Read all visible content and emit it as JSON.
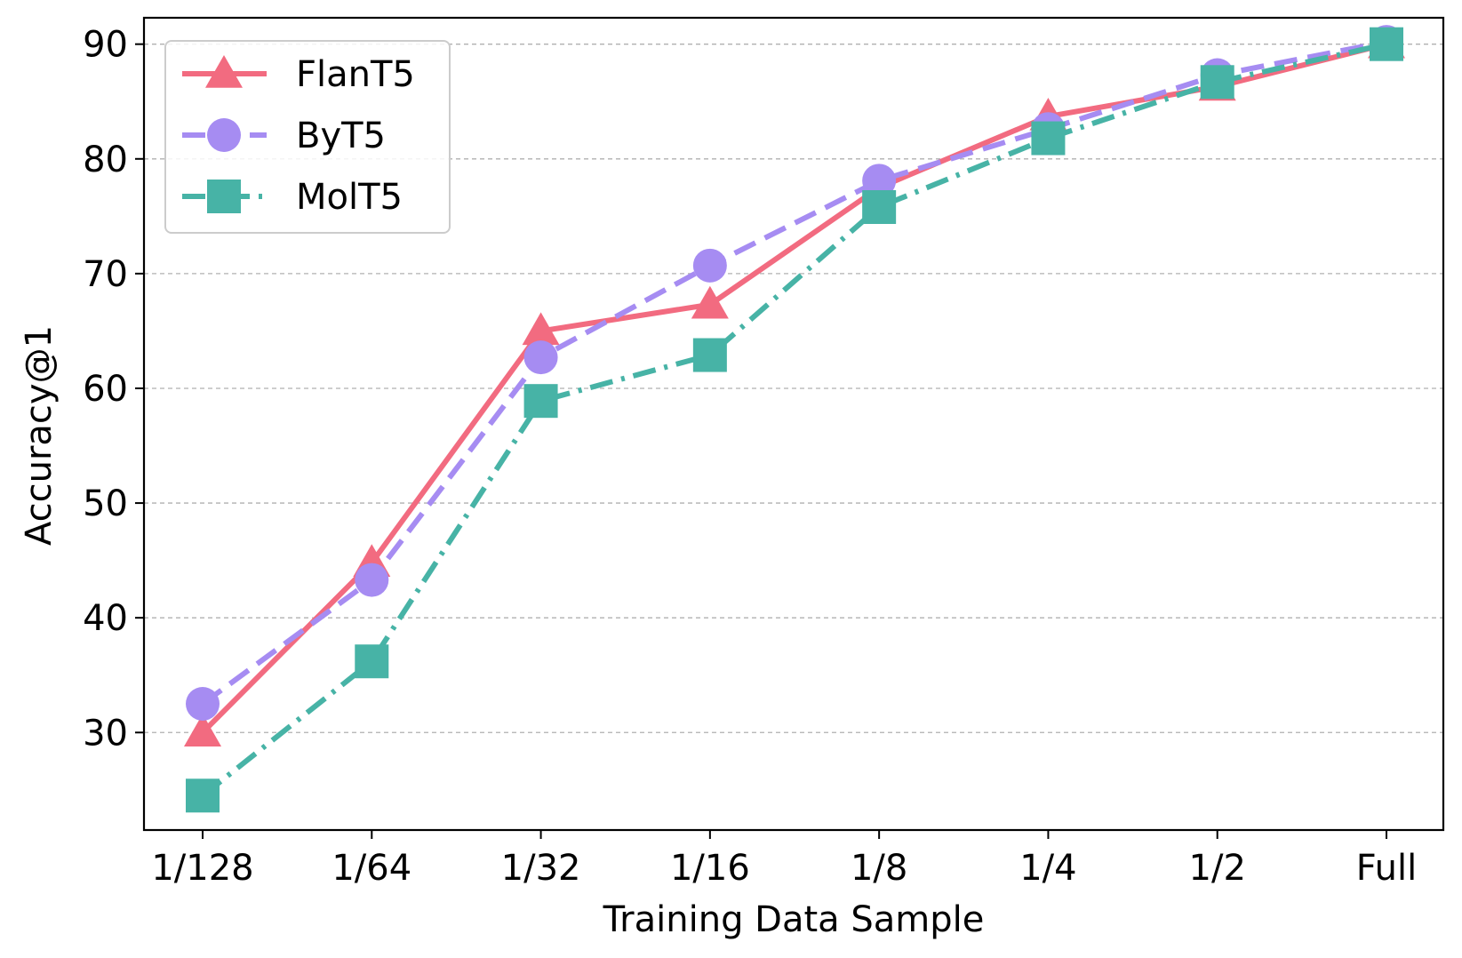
{
  "chart_data": {
    "type": "line",
    "categories": [
      "1/128",
      "1/64",
      "1/32",
      "1/16",
      "1/8",
      "1/4",
      "1/2",
      "Full"
    ],
    "xlabel": "Training Data Sample",
    "ylabel": "Accuracy@1",
    "ylim": [
      21.5,
      92.3
    ],
    "yticks": [
      30,
      40,
      50,
      60,
      70,
      80,
      90
    ],
    "grid": "horizontal dashed",
    "legend_position": "top-left",
    "series": [
      {
        "name": "FlanT5",
        "values": [
          30.0,
          44.8,
          65.0,
          67.3,
          77.5,
          83.7,
          86.3,
          90.0
        ],
        "color": "#f26b80",
        "marker": "triangle",
        "dash": "solid"
      },
      {
        "name": "ByT5",
        "values": [
          32.5,
          43.3,
          62.7,
          70.7,
          78.1,
          82.6,
          87.3,
          90.2
        ],
        "color": "#a68cf2",
        "marker": "circle",
        "dash": "dashed"
      },
      {
        "name": "MolT5",
        "values": [
          24.5,
          36.2,
          58.9,
          62.9,
          75.8,
          81.8,
          86.7,
          90.0
        ],
        "color": "#47b3a6",
        "marker": "square",
        "dash": "dashdot"
      }
    ]
  }
}
